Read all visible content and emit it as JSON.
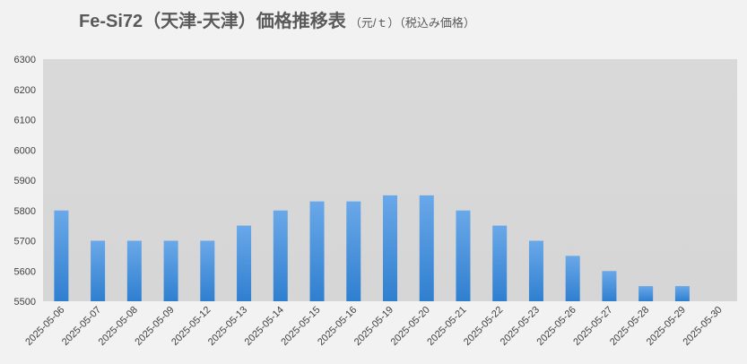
{
  "chart_data": {
    "type": "bar",
    "title": "Fe-Si72（天津-天津）価格推移表",
    "subtitle": "（元/ｔ）（税込み価格）",
    "categories": [
      "2025-05-06",
      "2025-05-07",
      "2025-05-08",
      "2025-05-09",
      "2025-05-12",
      "2025-05-13",
      "2025-05-14",
      "2025-05-15",
      "2025-05-16",
      "2025-05-19",
      "2025-05-20",
      "2025-05-21",
      "2025-05-22",
      "2025-05-23",
      "2025-05-26",
      "2025-05-27",
      "2025-05-28",
      "2025-05-29",
      "2025-05-30"
    ],
    "values": [
      5800,
      5700,
      5700,
      5700,
      5700,
      5750,
      5800,
      5830,
      5830,
      5850,
      5850,
      5800,
      5750,
      5700,
      5650,
      5600,
      5550,
      5550,
      null
    ],
    "color": "#4a90d9",
    "ylim": [
      5500,
      6300
    ],
    "yticks": [
      5500,
      5600,
      5700,
      5800,
      5900,
      6000,
      6100,
      6200,
      6300
    ],
    "grid": false
  }
}
